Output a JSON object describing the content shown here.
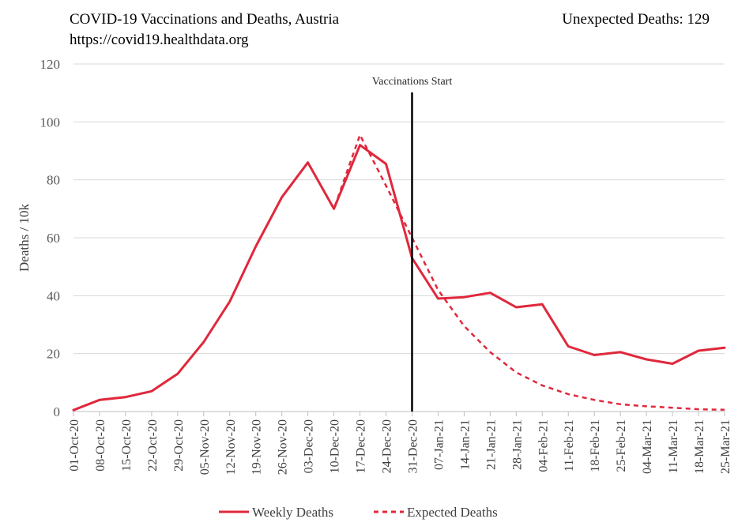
{
  "chart_data": {
    "type": "line",
    "title": "COVID-19 Vaccinations and Deaths, Austria",
    "subtitle": "https://covid19.healthdata.org",
    "stat_label": "Unexpected Deaths: 129",
    "xlabel": "",
    "ylabel": "Deaths / 10k",
    "ylim": [
      0,
      120
    ],
    "yticks": [
      "0",
      "20",
      "40",
      "60",
      "80",
      "100",
      "120"
    ],
    "grid": true,
    "legend_position": "bottom",
    "categories": [
      "01-Oct-20",
      "08-Oct-20",
      "15-Oct-20",
      "22-Oct-20",
      "29-Oct-20",
      "05-Nov-20",
      "12-Nov-20",
      "19-Nov-20",
      "26-Nov-20",
      "03-Dec-20",
      "10-Dec-20",
      "17-Dec-20",
      "24-Dec-20",
      "31-Dec-20",
      "07-Jan-21",
      "14-Jan-21",
      "21-Jan-21",
      "28-Jan-21",
      "04-Feb-21",
      "11-Feb-21",
      "18-Feb-21",
      "25-Feb-21",
      "04-Mar-21",
      "11-Mar-21",
      "18-Mar-21",
      "25-Mar-21"
    ],
    "series": [
      {
        "name": "Weekly Deaths",
        "style": "solid",
        "color": "#e0283c",
        "values": [
          0.5,
          4,
          5,
          7,
          13,
          24,
          38,
          57,
          74,
          86,
          70,
          92,
          85.5,
          53,
          39,
          39.5,
          41,
          36,
          37,
          22.5,
          19.5,
          20.5,
          18,
          16.5,
          21,
          22
        ]
      },
      {
        "name": "Expected Deaths",
        "style": "dashed",
        "color": "#e0283c",
        "values": [
          0.5,
          4,
          5,
          7,
          13,
          24,
          38,
          57,
          74,
          86,
          70,
          95.5,
          78,
          60,
          42,
          29.5,
          20.5,
          13.5,
          9,
          6,
          4,
          2.5,
          1.8,
          1.3,
          0.8,
          0.6
        ]
      }
    ],
    "annotations": [
      {
        "text": "Vaccinations Start",
        "at_category": "31-Dec-20"
      }
    ]
  }
}
